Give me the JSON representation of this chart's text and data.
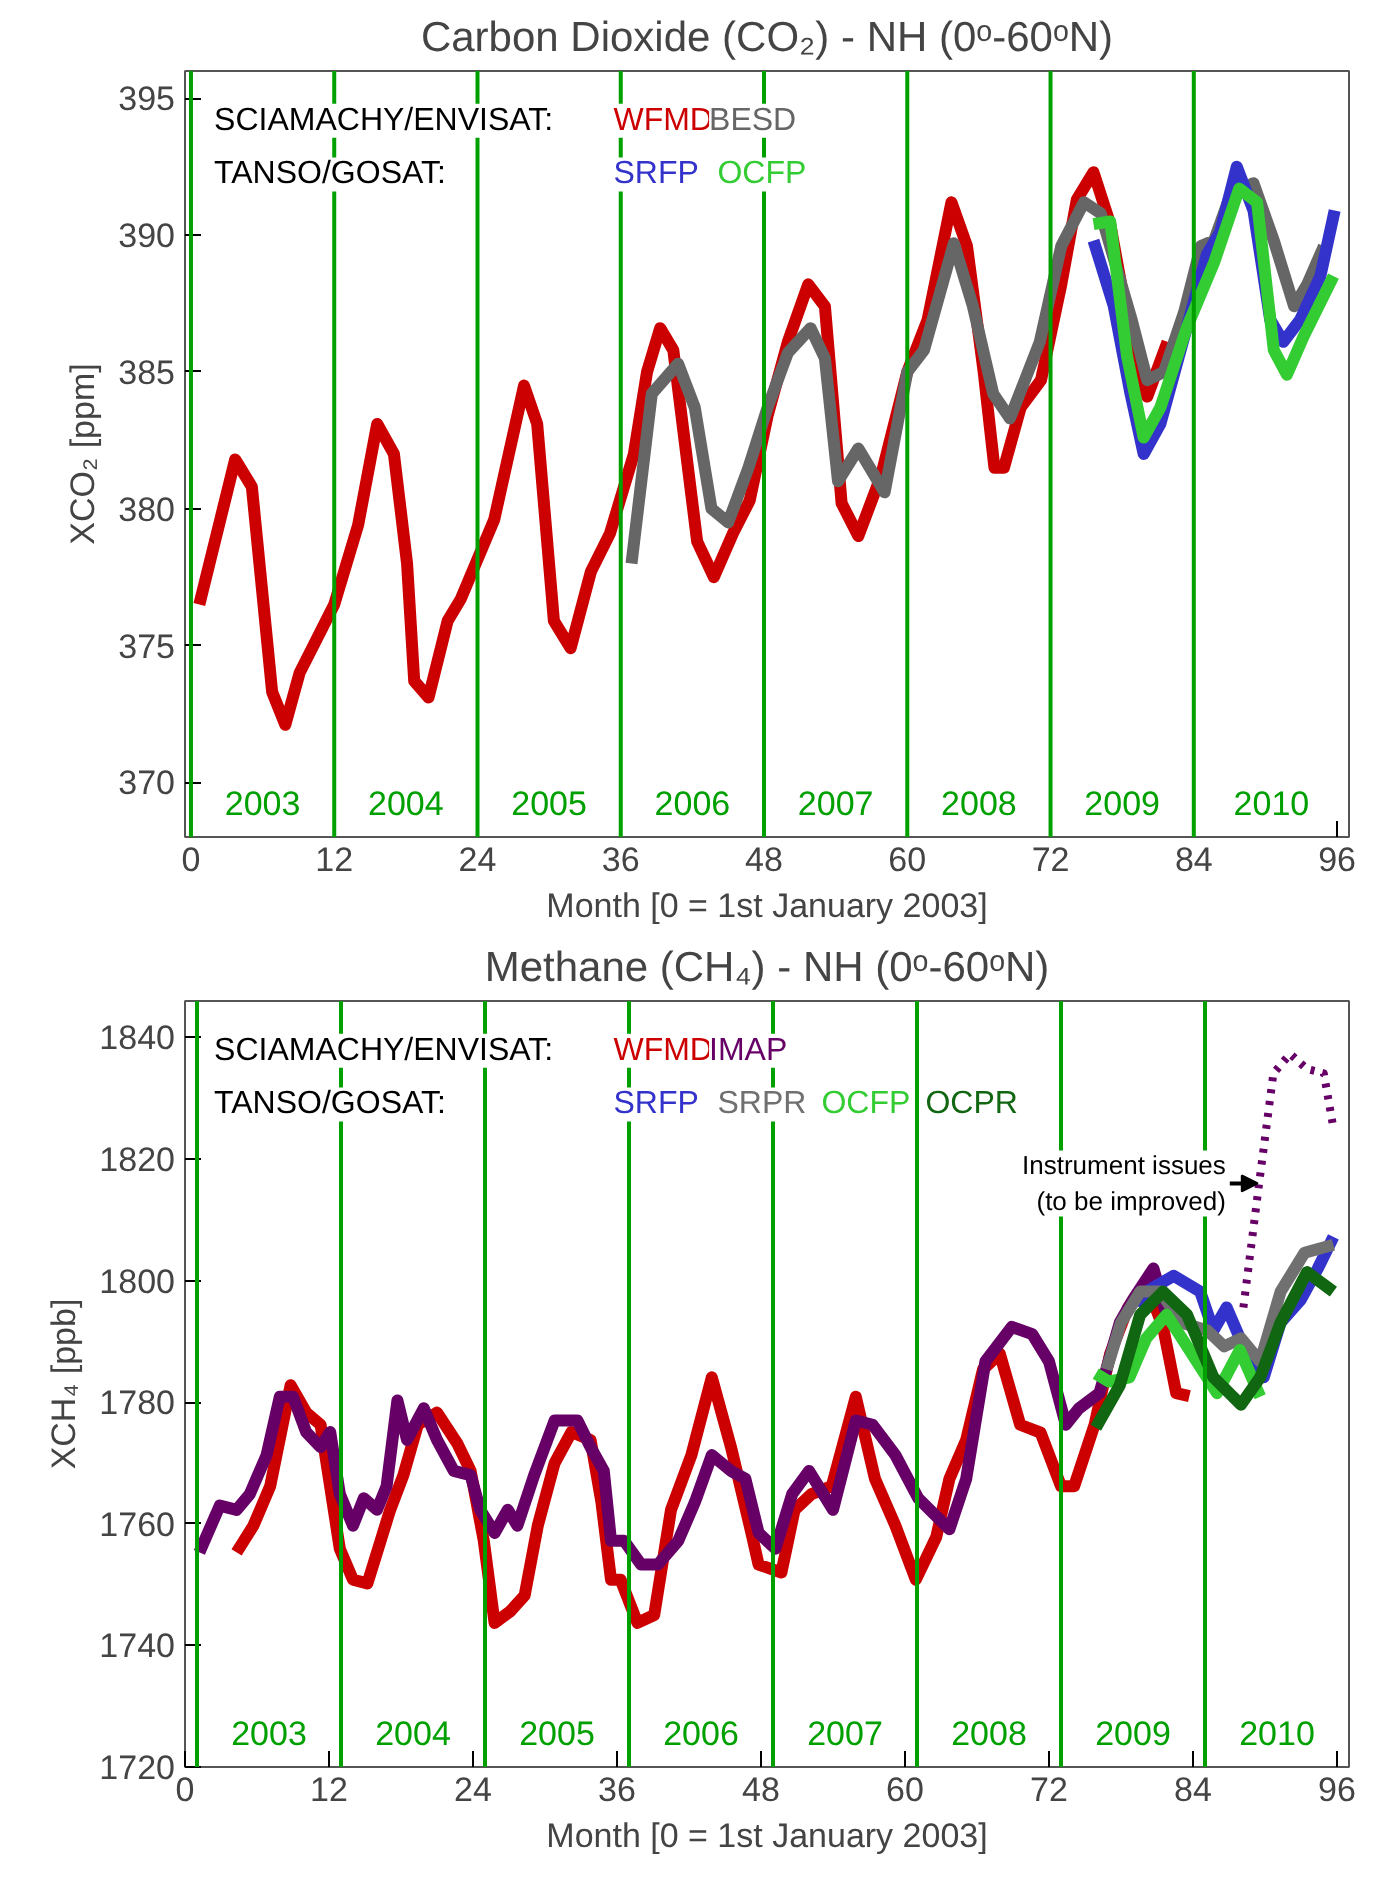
{
  "chart_data": [
    {
      "type": "line",
      "title": "Carbon Dioxide (CO₂) - NH (0ᵒ-60ᵒN)",
      "xlabel": "Month [0 = 1st January 2003]",
      "ylabel": "XCO₂ [ppm]",
      "xlim": [
        -0.5,
        97
      ],
      "ylim": [
        368,
        396
      ],
      "xticks": [
        0,
        12,
        24,
        36,
        48,
        60,
        72,
        84,
        96
      ],
      "yticks": [
        370,
        375,
        380,
        385,
        390,
        395
      ],
      "grid": false,
      "legend": "top left",
      "annotations": [
        "SCIAMACHY/ENVISAT:",
        "TANSO/GOSAT:",
        "2003",
        "2004",
        "2005",
        "2006",
        "2007",
        "2008",
        "2009",
        "2010"
      ],
      "ref_lines": [
        {
          "axis": "x",
          "value": 0,
          "color": "#00a000"
        },
        {
          "axis": "x",
          "value": 12,
          "color": "#00a000"
        },
        {
          "axis": "x",
          "value": 24,
          "color": "#00a000"
        },
        {
          "axis": "x",
          "value": 36,
          "color": "#00a000"
        },
        {
          "axis": "x",
          "value": 48,
          "color": "#00a000"
        },
        {
          "axis": "x",
          "value": 60,
          "color": "#00a000"
        },
        {
          "axis": "x",
          "value": 72,
          "color": "#00a000"
        },
        {
          "axis": "x",
          "value": 84,
          "color": "#00a000"
        }
      ],
      "series": [
        {
          "name": "WFMD",
          "color": "#cc0000",
          "x": [
            0.7,
            3.7,
            5.1,
            6.8,
            7.9,
            9.1,
            12,
            14,
            15.6,
            17,
            18.1,
            18.7,
            19.9,
            21.5,
            22.6,
            25.4,
            27.9,
            29,
            30.4,
            31.8,
            33.5,
            35.1,
            37.1,
            38.2,
            39.3,
            40.4,
            42.4,
            43.8,
            45.4,
            46.8,
            48.3,
            50,
            51.7,
            53.1,
            54.5,
            55.9,
            57.8,
            60,
            61.7,
            63.7,
            65,
            66.4,
            67.3,
            68.1,
            69.5,
            71.2,
            72.9,
            74.2,
            75.6,
            77,
            79,
            80.1,
            81.8
          ],
          "values": [
            376.5,
            381.8,
            380.8,
            373.3,
            372.1,
            374.0,
            376.5,
            379.4,
            383.1,
            382.0,
            378.0,
            373.7,
            373.1,
            375.9,
            376.7,
            379.6,
            384.5,
            383.1,
            375.9,
            374.9,
            377.7,
            379.1,
            382.0,
            385.0,
            386.6,
            385.8,
            378.8,
            377.5,
            379.1,
            380.3,
            383.4,
            386.1,
            388.2,
            387.4,
            380.2,
            379.0,
            381.2,
            385.0,
            386.9,
            391.2,
            389.6,
            385.0,
            381.5,
            381.5,
            383.7,
            384.7,
            388.2,
            391.3,
            392.3,
            390.4,
            385.6,
            384.1,
            386.1
          ]
        },
        {
          "name": "BESD",
          "color": "#666666",
          "x": [
            36.9,
            38.6,
            40.8,
            42.2,
            43.6,
            45,
            46.7,
            48.3,
            50,
            51.9,
            53.1,
            54.2,
            55.9,
            58.1,
            60,
            61.4,
            63.9,
            65.5,
            67.2,
            68.6,
            71.1,
            72.9,
            74.8,
            76.2,
            78.8,
            80.1,
            81.5,
            83.2,
            84.6,
            85.7,
            87.1,
            89,
            90.7,
            92.4,
            93.5,
            94.9
          ],
          "values": [
            378.0,
            384.2,
            385.3,
            383.7,
            380.0,
            379.5,
            381.5,
            383.7,
            385.7,
            386.6,
            385.5,
            381.0,
            382.2,
            380.6,
            385.0,
            385.8,
            389.7,
            387.4,
            384.2,
            383.3,
            386.1,
            389.6,
            391.2,
            390.8,
            386.9,
            384.7,
            385.0,
            387.2,
            389.6,
            389.8,
            391.5,
            391.9,
            389.8,
            387.4,
            388.2,
            389.6
          ]
        },
        {
          "name": "SRFP",
          "color": "#3333cc",
          "x": [
            75.6,
            77.3,
            78.7,
            79.8,
            81.2,
            83.4,
            85.1,
            86.2,
            87.6,
            89,
            90.4,
            91.5,
            92.9,
            94.6,
            95.8
          ],
          "values": [
            389.8,
            387.4,
            384.2,
            382.0,
            383.1,
            386.6,
            389.3,
            390.1,
            392.5,
            390.9,
            386.9,
            386.1,
            386.9,
            388.5,
            390.9
          ]
        },
        {
          "name": "OCFP",
          "color": "#33cc33",
          "x": [
            75.6,
            77,
            78.4,
            79.8,
            81.2,
            83.4,
            85.7,
            87.8,
            89.3,
            90.7,
            91.8,
            93.2,
            95.7
          ],
          "values": [
            390.4,
            390.5,
            385.6,
            382.6,
            383.7,
            386.6,
            389.0,
            391.7,
            391.2,
            385.8,
            384.9,
            386.3,
            388.5
          ]
        }
      ]
    },
    {
      "type": "line",
      "title": "Methane (CH₄) - NH (0ᵒ-60ᵒN)",
      "xlabel": "Month [0 = 1st January 2003]",
      "ylabel": "XCH₄ [ppb]",
      "xlim": [
        0,
        97
      ],
      "ylim": [
        1720,
        1846
      ],
      "xticks": [
        0,
        12,
        24,
        36,
        48,
        60,
        72,
        84,
        96
      ],
      "yticks": [
        1720,
        1740,
        1760,
        1780,
        1800,
        1820,
        1840
      ],
      "grid": false,
      "legend": "top left",
      "annotations": [
        "SCIAMACHY/ENVISAT:",
        "TANSO/GOSAT:",
        {
          "text": "Instrument issues\n(to be improved)",
          "x": 89.4,
          "y": 1816
        },
        "2003",
        "2004",
        "2005",
        "2006",
        "2007",
        "2008",
        "2009",
        "2010"
      ],
      "ref_lines": [
        {
          "axis": "x",
          "value": 1,
          "color": "#00a000"
        },
        {
          "axis": "x",
          "value": 13,
          "color": "#00a000"
        },
        {
          "axis": "x",
          "value": 25,
          "color": "#00a000"
        },
        {
          "axis": "x",
          "value": 37,
          "color": "#00a000"
        },
        {
          "axis": "x",
          "value": 49,
          "color": "#00a000"
        },
        {
          "axis": "x",
          "value": 61,
          "color": "#00a000"
        },
        {
          "axis": "x",
          "value": 73,
          "color": "#00a000"
        },
        {
          "axis": "x",
          "value": 85,
          "color": "#00a000"
        }
      ],
      "series": [
        {
          "name": "WFMD",
          "color": "#cc0000",
          "x": [
            4.3,
            5.7,
            7.1,
            8.8,
            10.1,
            11.3,
            12.9,
            14,
            15.2,
            17.1,
            18.2,
            19.4,
            21,
            22.7,
            23.8,
            24.9,
            25.8,
            27.1,
            28.3,
            29.4,
            30.8,
            32.2,
            33.8,
            34.7,
            35.5,
            36.3,
            37.7,
            39.1,
            40.5,
            42.2,
            43.9,
            45.5,
            47.2,
            47.8,
            49.7,
            50.8,
            52.2,
            53.9,
            55.9,
            57.5,
            59.2,
            60.9,
            62.6,
            63.7,
            65.1,
            66.5,
            67.9,
            69.6,
            71.3,
            73,
            74.1,
            75.8,
            77.1,
            78.6,
            80.1,
            81.5,
            82.6,
            83.7
          ],
          "values": [
            1755.3,
            1759.7,
            1766.2,
            1782.8,
            1778.3,
            1776.3,
            1755.9,
            1750.8,
            1750.2,
            1762.3,
            1768,
            1776.3,
            1778.3,
            1773.2,
            1768.7,
            1757.2,
            1743.7,
            1745.6,
            1748.2,
            1759.7,
            1770,
            1775.1,
            1773.8,
            1763.6,
            1750.8,
            1750.8,
            1743.7,
            1745,
            1762.3,
            1771.3,
            1784.1,
            1772.6,
            1758.5,
            1753.3,
            1752,
            1762.3,
            1764.9,
            1766.2,
            1780.9,
            1767.4,
            1759.7,
            1750.8,
            1757.8,
            1767.4,
            1773.8,
            1785.4,
            1788,
            1776.3,
            1775,
            1766.2,
            1766.2,
            1776.3,
            1788,
            1795.6,
            1799.5,
            1792.4,
            1781.5,
            1781
          ]
        },
        {
          "name": "IMAP",
          "color": "#660066",
          "x": [
            1.2,
            2.9,
            4.3,
            5.4,
            6.8,
            7.9,
            9,
            10.1,
            11.3,
            12.1,
            12.9,
            14,
            14.9,
            16,
            16.8,
            17.7,
            18.5,
            19.9,
            21,
            22.4,
            23.8,
            24.6,
            25.8,
            26.9,
            27.7,
            29.1,
            30.8,
            32.7,
            33.8,
            34.9,
            35.5,
            36.6,
            38,
            39.4,
            41.1,
            42.5,
            43.9,
            45.5,
            46.7,
            47.8,
            49.2,
            50.6,
            52,
            54,
            55.9,
            57.3,
            59.2,
            61.1,
            63.7,
            65.1,
            66.7,
            68.9,
            70.6,
            72,
            73.4,
            74.5,
            76.2,
            77.9,
            79,
            80.7,
            81.8
          ],
          "values": [
            1755.3,
            1763,
            1762.3,
            1764.9,
            1771.3,
            1780.9,
            1780.9,
            1775.1,
            1772.6,
            1775.1,
            1764.9,
            1759.7,
            1764.2,
            1762.3,
            1766.2,
            1780.3,
            1773.8,
            1779,
            1773.8,
            1768.7,
            1768,
            1762.3,
            1758.5,
            1762.3,
            1759.7,
            1768,
            1777,
            1777,
            1772.6,
            1768.7,
            1757.2,
            1757.2,
            1753.3,
            1753.3,
            1757.2,
            1763.6,
            1771.3,
            1768.7,
            1767.4,
            1758.5,
            1755.9,
            1764.9,
            1768.7,
            1762.3,
            1777,
            1776.3,
            1771.3,
            1764.2,
            1759.1,
            1767.4,
            1786.7,
            1792.4,
            1791.2,
            1786.7,
            1776.3,
            1779,
            1781.5,
            1793.1,
            1796.9,
            1802,
            1794.4
          ]
        },
        {
          "name": "SRFP",
          "color": "#3333cc",
          "x": [
            79.6,
            80.1,
            82.4,
            84.6,
            85.7,
            86.8,
            88.2,
            89.9,
            91.3,
            93,
            94.4,
            95.7
          ],
          "values": [
            1795.6,
            1798.2,
            1800.8,
            1798.2,
            1791.8,
            1795.6,
            1789.2,
            1784.1,
            1793.1,
            1796.9,
            1802,
            1807.2
          ]
        },
        {
          "name": "SRPR",
          "color": "#707070",
          "x": [
            76.8,
            78,
            79.6,
            81.3,
            83,
            85.2,
            86.6,
            88,
            89.6,
            91.3,
            93.3,
            95.7
          ],
          "values": [
            1785.4,
            1793.1,
            1798.2,
            1798.2,
            1793.1,
            1791.8,
            1789.2,
            1790.5,
            1786.7,
            1798.2,
            1804.6,
            1805.9
          ]
        },
        {
          "name": "OCFP",
          "color": "#33cc33",
          "x": [
            75.9,
            77,
            78.7,
            80.1,
            81.8,
            83.5,
            86,
            87.9,
            89.6
          ],
          "values": [
            1784.7,
            1783.4,
            1784.1,
            1790.5,
            1794.4,
            1789.2,
            1781.5,
            1788.6,
            1780.9
          ]
        },
        {
          "name": "OCPR",
          "color": "#116611",
          "x": [
            75.9,
            77.9,
            79.6,
            81.5,
            83.5,
            85.7,
            88,
            89.6,
            91.3,
            93.5,
            95.7
          ],
          "values": [
            1775.8,
            1782.8,
            1794.4,
            1798.2,
            1794.4,
            1784.1,
            1779.6,
            1784.1,
            1793.1,
            1801.4,
            1798.2
          ]
        },
        {
          "color": "#660066",
          "line_style": "dotted",
          "x": [
            88.2,
            89.6,
            90.7,
            92.1,
            93.5,
            94.9,
            95.7
          ],
          "values": [
            1795.6,
            1817.4,
            1834.1,
            1837.3,
            1834.8,
            1834.1,
            1825.1
          ]
        }
      ]
    }
  ]
}
